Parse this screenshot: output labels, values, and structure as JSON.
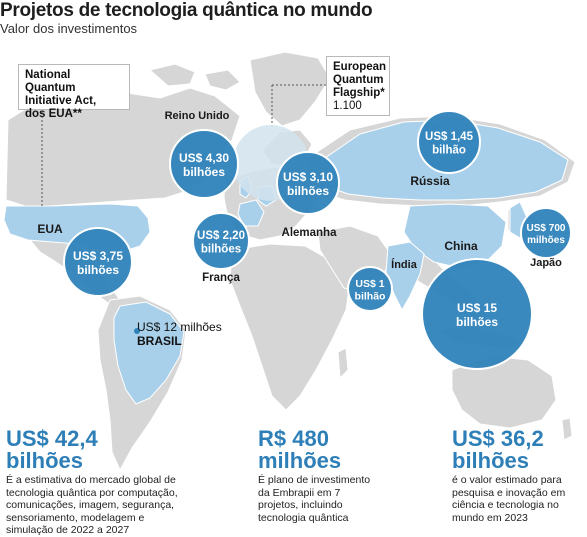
{
  "header": {
    "title": "Projetos de tecnologia quântica no mundo",
    "subtitle": "Valor dos investimentos"
  },
  "callouts": {
    "usa_act": {
      "line1": "National Quantum",
      "line2": "Initiative Act,",
      "line3": "dos EUA**"
    },
    "eu_flagship": {
      "line1": "European",
      "line2": "Quantum",
      "line3": "Flagship*",
      "value": "1.100"
    }
  },
  "bubbles": [
    {
      "id": "uk",
      "line1": "US$ 4,30",
      "line2": "bilhões"
    },
    {
      "id": "germany",
      "line1": "US$ 3,10",
      "line2": "bilhões"
    },
    {
      "id": "russia",
      "line1": "US$ 1,45",
      "line2": "bilhão"
    },
    {
      "id": "japan",
      "line1": "US$ 700",
      "line2": "milhões"
    },
    {
      "id": "usa",
      "line1": "US$ 3,75",
      "line2": "bilhões"
    },
    {
      "id": "france",
      "line1": "US$ 2,20",
      "line2": "bilhões"
    },
    {
      "id": "india",
      "line1": "US$ 1",
      "line2": "bilhão"
    },
    {
      "id": "china",
      "line1": "US$ 15",
      "line2": "bilhões"
    }
  ],
  "countries": {
    "reino_unido": "Reino Unido",
    "russia": "Rússia",
    "eua": "EUA",
    "alemanha": "Alemanha",
    "franca": "França",
    "china": "China",
    "india": "Índia",
    "japao": "Japão"
  },
  "brazil": {
    "value": "US$ 12 milhões",
    "name": "BRASIL"
  },
  "stats": [
    {
      "value_line1": "US$ 42,4",
      "value_line2": "bilhões",
      "desc": [
        "É a estimativa do mercado global de",
        "tecnologia quântica por computação,",
        "comunicações, imagem, segurança,",
        "sensoriamento, modelagem e",
        "simulação de 2022 a 2027"
      ]
    },
    {
      "value_line1": "R$ 480",
      "value_line2": "milhões",
      "desc": [
        "É plano de investimento",
        "da Embrapii em 7",
        "projetos, incluindo",
        "tecnologia quântica"
      ]
    },
    {
      "value_line1": "US$ 36,2",
      "value_line2": "bilhões",
      "desc": [
        "é o valor estimado para",
        "pesquisa e inovação em",
        "ciência e tecnologia no",
        "mundo em 2023"
      ]
    }
  ],
  "colors": {
    "land": "#d6d6d6",
    "highlight": "#a9d0ea",
    "bubble": "#2f83bb",
    "bubble_light": "#d2e3ef",
    "value_text": "#2e7fb8"
  }
}
